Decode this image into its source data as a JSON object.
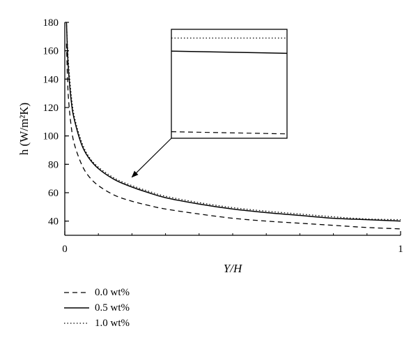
{
  "chart_data": {
    "type": "line",
    "xlabel": "Y/H",
    "ylabel": "h (W/m²K)",
    "xlim": [
      0,
      1
    ],
    "ylim": [
      30,
      180
    ],
    "xticks": [
      0,
      1
    ],
    "yticks": [
      40,
      60,
      80,
      100,
      120,
      140,
      160,
      180
    ],
    "grid": false,
    "legend_position": "bottom-left, below plot",
    "x": [
      0.005,
      0.01,
      0.02,
      0.03,
      0.05,
      0.07,
      0.1,
      0.15,
      0.2,
      0.25,
      0.3,
      0.4,
      0.5,
      0.6,
      0.7,
      0.8,
      0.9,
      1.0
    ],
    "series": [
      {
        "name": "0.0 wt%",
        "style": "dashed",
        "values": [
          165,
          130,
          105,
          93,
          80,
          72,
          65,
          58,
          54,
          51,
          48.5,
          45,
          42,
          40,
          38.5,
          37,
          35.5,
          34.5
        ]
      },
      {
        "name": "0.5 wt%",
        "style": "solid",
        "values": [
          180,
          150,
          123,
          110,
          94,
          85,
          77,
          69,
          64,
          60,
          56.5,
          52,
          48.5,
          46,
          44,
          42,
          41,
          40
        ]
      },
      {
        "name": "1.0 wt%",
        "style": "dotted",
        "values": [
          180,
          155,
          127,
          112,
          96,
          86,
          78,
          70,
          65,
          61,
          57.5,
          53,
          49.5,
          47,
          45,
          43,
          41.5,
          41
        ]
      }
    ],
    "inset": {
      "description_visible": "zoom box with arrow pointing to curves near Y/H = 0.2",
      "arrow_target": {
        "x": 0.2,
        "y": 70
      },
      "series_levels": [
        {
          "name": "1.0 wt%",
          "style": "dotted",
          "y_start": 0.08,
          "y_end": 0.08
        },
        {
          "name": "0.5 wt%",
          "style": "solid",
          "y_start": 0.2,
          "y_end": 0.22
        },
        {
          "name": "0.0 wt%",
          "style": "dashed",
          "y_start": 0.94,
          "y_end": 0.96
        }
      ]
    }
  },
  "legend": {
    "items": [
      {
        "label": "0.0 wt%",
        "style": "dashed"
      },
      {
        "label": "0.5 wt%",
        "style": "solid"
      },
      {
        "label": "1.0 wt%",
        "style": "dotted"
      }
    ]
  }
}
